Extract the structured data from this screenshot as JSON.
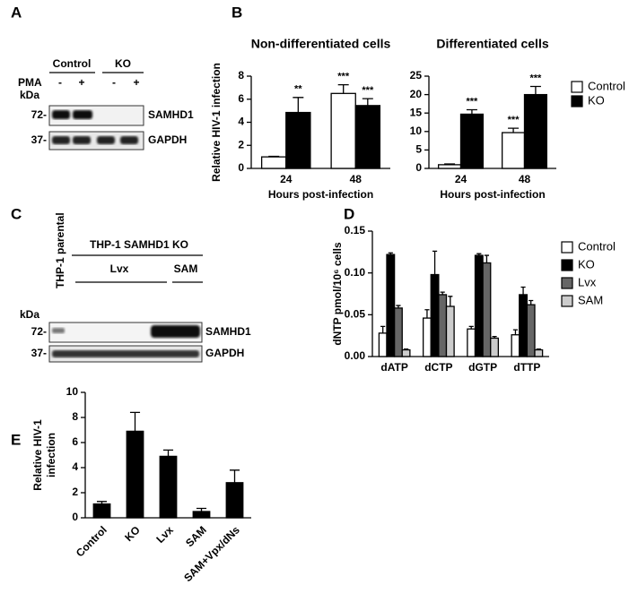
{
  "panel_letters": [
    "A",
    "B",
    "C",
    "D",
    "E"
  ],
  "blot_a": {
    "groups": [
      "Control",
      "KO"
    ],
    "treatment": "PMA",
    "treatment_marks": [
      "-",
      "+",
      "-",
      "+"
    ],
    "size_unit": "kDa",
    "markers": [
      "72-",
      "37-"
    ],
    "proteins": [
      "SAMHD1",
      "GAPDH"
    ]
  },
  "blot_c": {
    "lane_label": "THP-1 parental",
    "group": "THP-1 SAMHD1 KO",
    "subgroups": [
      "Lvx",
      "SAM"
    ],
    "size_unit": "kDa",
    "markers": [
      "72-",
      "37-"
    ],
    "proteins": [
      "SAMHD1",
      "GAPDH"
    ]
  },
  "chart_data": [
    {
      "type": "bar",
      "title": "Non-differentiated cells",
      "categories": [
        "24",
        "48"
      ],
      "series": [
        {
          "color": "#ffffff",
          "values": [
            1.0,
            6.5
          ],
          "errors": [
            0.05,
            0.75
          ],
          "significance": [
            null,
            "***"
          ]
        },
        {
          "color": "#000000",
          "values": [
            4.85,
            5.45
          ],
          "errors": [
            1.3,
            0.6
          ],
          "significance": [
            "**",
            "***"
          ]
        }
      ],
      "ylim": [
        0,
        8
      ],
      "yticks": [
        0,
        2,
        4,
        6,
        8
      ],
      "x_label": "Hours post-infection",
      "y_label": "Relative HIV-1 infection"
    },
    {
      "type": "bar",
      "title": "Differentiated cells",
      "categories": [
        "24",
        "48"
      ],
      "series": [
        {
          "name": "Control",
          "color": "#ffffff",
          "values": [
            1.0,
            9.7
          ],
          "errors": [
            0.2,
            1.2
          ],
          "significance": [
            null,
            "***"
          ]
        },
        {
          "name": "KO",
          "color": "#000000",
          "values": [
            14.7,
            20.0
          ],
          "errors": [
            1.2,
            2.2
          ],
          "significance": [
            "***",
            "***"
          ]
        }
      ],
      "ylim": [
        0,
        25
      ],
      "yticks": [
        0,
        5,
        10,
        15,
        20,
        25
      ],
      "x_label": "Hours post-infection",
      "legend": true
    },
    {
      "type": "bar",
      "categories": [
        "dATP",
        "dCTP",
        "dGTP",
        "dTTP"
      ],
      "series": [
        {
          "name": "Control",
          "color": "#ffffff",
          "values": [
            0.028,
            0.046,
            0.033,
            0.026
          ],
          "errors": [
            0.008,
            0.01,
            0.003,
            0.006
          ]
        },
        {
          "name": "KO",
          "color": "#000000",
          "values": [
            0.122,
            0.098,
            0.121,
            0.074
          ],
          "errors": [
            0.002,
            0.028,
            0.002,
            0.009
          ]
        },
        {
          "name": "Lvx",
          "color": "#666666",
          "values": [
            0.058,
            0.074,
            0.112,
            0.062
          ],
          "errors": [
            0.003,
            0.003,
            0.009,
            0.005
          ]
        },
        {
          "name": "SAM",
          "color": "#cccccc",
          "values": [
            0.008,
            0.06,
            0.022,
            0.008
          ],
          "errors": [
            0.001,
            0.012,
            0.002,
            0.001
          ]
        }
      ],
      "ylim": [
        0,
        0.15
      ],
      "yticks": [
        {
          "value": 0,
          "label": "0.00"
        },
        {
          "value": 0.05,
          "label": "0.05"
        },
        {
          "value": 0.1,
          "label": "0.10"
        },
        0.15
      ],
      "y_label": "dNTP pmol/10⁶ cells",
      "legend": true
    },
    {
      "type": "bar",
      "categories": [
        "Control",
        "KO",
        "Lvx",
        "SAM",
        "SAM+Vpx/dNs"
      ],
      "series": [
        {
          "color": "#000000",
          "values": [
            1.1,
            6.9,
            4.9,
            0.5,
            2.8
          ],
          "errors": [
            0.2,
            1.5,
            0.5,
            0.25,
            1.0
          ]
        }
      ],
      "ylim": [
        0,
        10
      ],
      "yticks": [
        0,
        2,
        4,
        6,
        8,
        10
      ],
      "y_label": [
        "Relative HIV-1",
        "infection"
      ]
    }
  ]
}
